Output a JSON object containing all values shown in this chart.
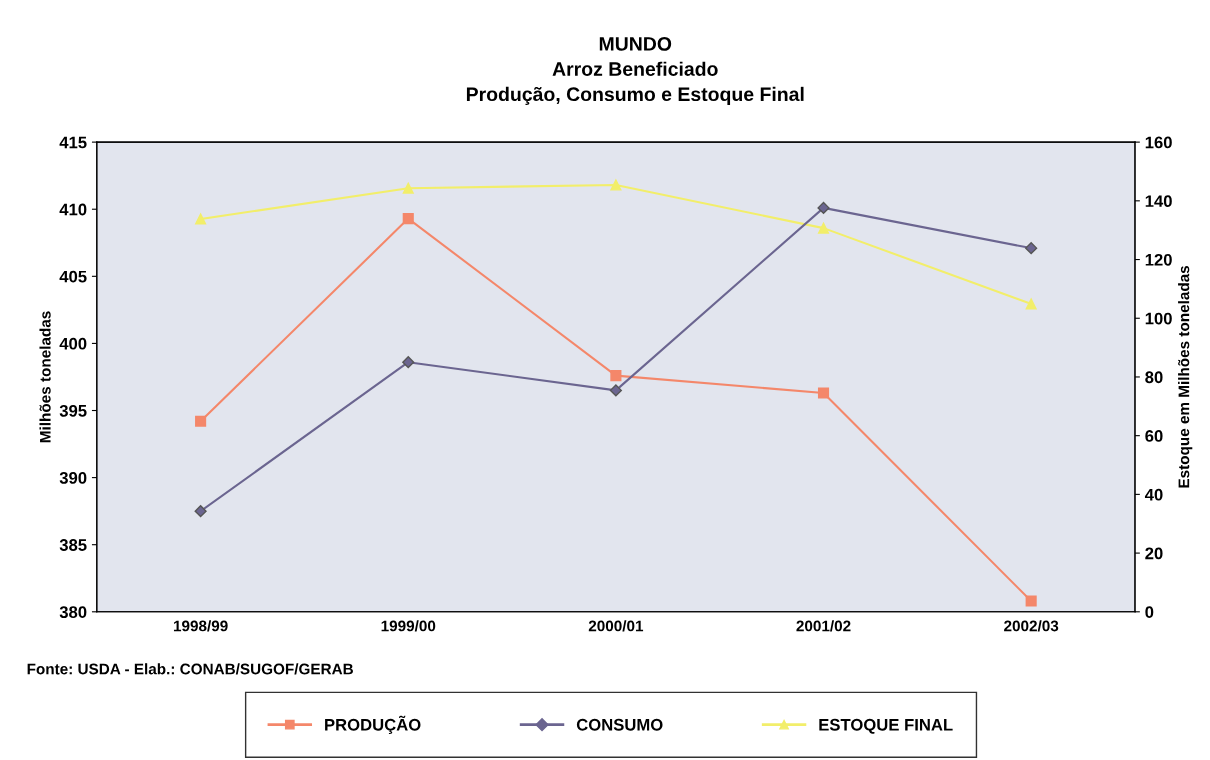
{
  "chart_data": {
    "type": "line",
    "title": "MUNDO\nArroz Beneficiado\nProdução, Consumo e Estoque Final",
    "categories": [
      "1998/99",
      "1999/00",
      "2000/01",
      "2001/02",
      "2002/03"
    ],
    "ylabel": "Milhões toneladas",
    "y2label": "Estoque em Milhões toneladas",
    "ylim": [
      380,
      415
    ],
    "yticks": [
      380,
      385,
      390,
      395,
      400,
      405,
      410,
      415
    ],
    "y2lim": [
      0,
      160
    ],
    "y2ticks": [
      0,
      20,
      40,
      60,
      80,
      100,
      120,
      140,
      160
    ],
    "series": [
      {
        "name": "PRODUÇÃO",
        "color": "#f4876a",
        "marker": "square",
        "values": [
          394.2,
          409.3,
          397.6,
          396.3,
          380.8
        ]
      },
      {
        "name": "CONSUMO",
        "color": "#6b6590",
        "marker": "diamond",
        "values": [
          387.5,
          398.6,
          396.5,
          410.1,
          407.1
        ]
      },
      {
        "name": "ESTOQUE FINAL",
        "color": "#f2ee6a",
        "marker": "triangle",
        "axis": "y2",
        "values": [
          133.8,
          144.3,
          145.4,
          130.7,
          104.9
        ]
      }
    ],
    "grid": false,
    "legend": "bottom",
    "annotations": [
      "Fonte: USDA - Elab.: CONAB/SUGOF/GERAB"
    ]
  }
}
